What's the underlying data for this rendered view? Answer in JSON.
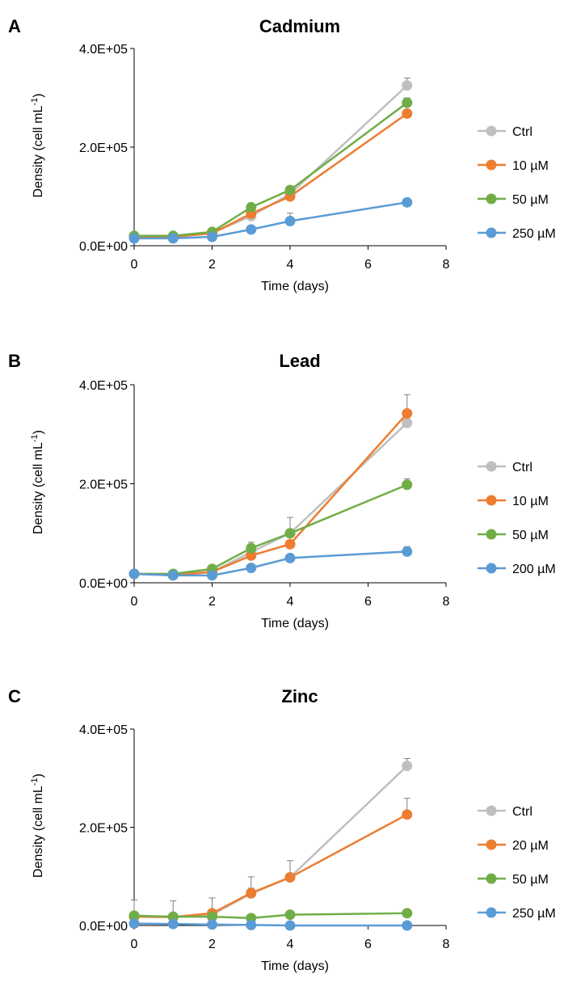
{
  "chart_data": [
    {
      "type": "line",
      "panel": "A",
      "title": "Cadmium",
      "xlabel": "Time (days)",
      "ylabel_main": "Density (cell mL",
      "ylabel_sup": "-1",
      "ylabel_end": ")",
      "xlim": [
        0,
        8
      ],
      "ylim": [
        0,
        400000
      ],
      "xticks": [
        0,
        2,
        4,
        6,
        8
      ],
      "xtick_labels": [
        "0",
        "2",
        "4",
        "6",
        "8"
      ],
      "yticks": [
        0,
        200000,
        400000
      ],
      "ytick_labels": [
        "0.0E+00",
        "2.0E+05",
        "4.0E+05"
      ],
      "x": [
        0,
        1,
        2,
        3,
        4,
        7
      ],
      "series": [
        {
          "name": "Ctrl",
          "color": "#bfbfbf",
          "values": [
            18000,
            18000,
            26000,
            60000,
            105000,
            325000
          ],
          "errors": [
            2000,
            2000,
            2000,
            4000,
            4000,
            15000
          ]
        },
        {
          "name": "10 µM",
          "color": "#ed7d31",
          "values": [
            18000,
            18000,
            25000,
            65000,
            100000,
            268000
          ],
          "errors": [
            2000,
            2000,
            2000,
            8000,
            8000,
            5000
          ]
        },
        {
          "name": "50 µM",
          "color": "#70ad47",
          "values": [
            20000,
            20000,
            28000,
            78000,
            113000,
            290000
          ],
          "errors": [
            2000,
            2000,
            2000,
            4000,
            4000,
            10000
          ]
        },
        {
          "name": "250 µM",
          "color": "#5b9bd5",
          "values": [
            15000,
            15000,
            18000,
            33000,
            50000,
            88000
          ],
          "errors": [
            2000,
            2000,
            2000,
            4000,
            16000,
            8000
          ]
        }
      ]
    },
    {
      "type": "line",
      "panel": "B",
      "title": "Lead",
      "xlabel": "Time (days)",
      "ylabel_main": "Density (cell mL",
      "ylabel_sup": "-1",
      "ylabel_end": ")",
      "xlim": [
        0,
        8
      ],
      "ylim": [
        0,
        400000
      ],
      "xticks": [
        0,
        2,
        4,
        6,
        8
      ],
      "xtick_labels": [
        "0",
        "2",
        "4",
        "6",
        "8"
      ],
      "yticks": [
        0,
        200000,
        400000
      ],
      "ytick_labels": [
        "0.0E+00",
        "2.0E+05",
        "4.0E+05"
      ],
      "x": [
        0,
        1,
        2,
        3,
        4,
        7
      ],
      "series": [
        {
          "name": "Ctrl",
          "color": "#bfbfbf",
          "values": [
            18000,
            18000,
            22000,
            62000,
            100000,
            323000
          ],
          "errors": [
            2000,
            2000,
            2000,
            4000,
            32000,
            15000
          ]
        },
        {
          "name": "10 µM",
          "color": "#ed7d31",
          "values": [
            18000,
            15000,
            22000,
            55000,
            78000,
            342000
          ],
          "errors": [
            2000,
            2000,
            2000,
            4000,
            4000,
            38000
          ]
        },
        {
          "name": "50 µM",
          "color": "#70ad47",
          "values": [
            18000,
            18000,
            28000,
            70000,
            100000,
            198000
          ],
          "errors": [
            2000,
            2000,
            2000,
            12000,
            4000,
            12000
          ]
        },
        {
          "name": "200 µM",
          "color": "#5b9bd5",
          "values": [
            18000,
            15000,
            15000,
            30000,
            50000,
            63000
          ],
          "errors": [
            2000,
            2000,
            2000,
            2000,
            2000,
            10000
          ]
        }
      ]
    },
    {
      "type": "line",
      "panel": "C",
      "title": "Zinc",
      "xlabel": "Time (days)",
      "ylabel_main": "Density (cell mL",
      "ylabel_sup": "-1",
      "ylabel_end": ")",
      "xlim": [
        0,
        8
      ],
      "ylim": [
        0,
        400000
      ],
      "xticks": [
        0,
        2,
        4,
        6,
        8
      ],
      "xtick_labels": [
        "0",
        "2",
        "4",
        "6",
        "8"
      ],
      "yticks": [
        0,
        200000,
        400000
      ],
      "ytick_labels": [
        "0.0E+00",
        "2.0E+05",
        "4.0E+05"
      ],
      "x": [
        0,
        1,
        2,
        3,
        4,
        7
      ],
      "series": [
        {
          "name": "Ctrl",
          "color": "#bfbfbf",
          "values": [
            18000,
            18000,
            22000,
            65000,
            98000,
            325000
          ],
          "errors": [
            34000,
            32000,
            34000,
            34000,
            34000,
            15000
          ]
        },
        {
          "name": "20 µM",
          "color": "#ed7d31",
          "values": [
            18000,
            17000,
            25000,
            66000,
            98000,
            226000
          ],
          "errors": [
            4000,
            4000,
            4000,
            10000,
            4000,
            33000
          ]
        },
        {
          "name": "50 µM",
          "color": "#70ad47",
          "values": [
            20000,
            18000,
            18000,
            15000,
            22000,
            25000
          ],
          "errors": [
            2000,
            2000,
            2000,
            2000,
            2000,
            2000
          ]
        },
        {
          "name": "250 µM",
          "color": "#5b9bd5",
          "values": [
            4000,
            3000,
            2000,
            1000,
            0,
            0
          ],
          "errors": [
            1000,
            1000,
            1000,
            1000,
            1000,
            1000
          ]
        }
      ]
    }
  ]
}
